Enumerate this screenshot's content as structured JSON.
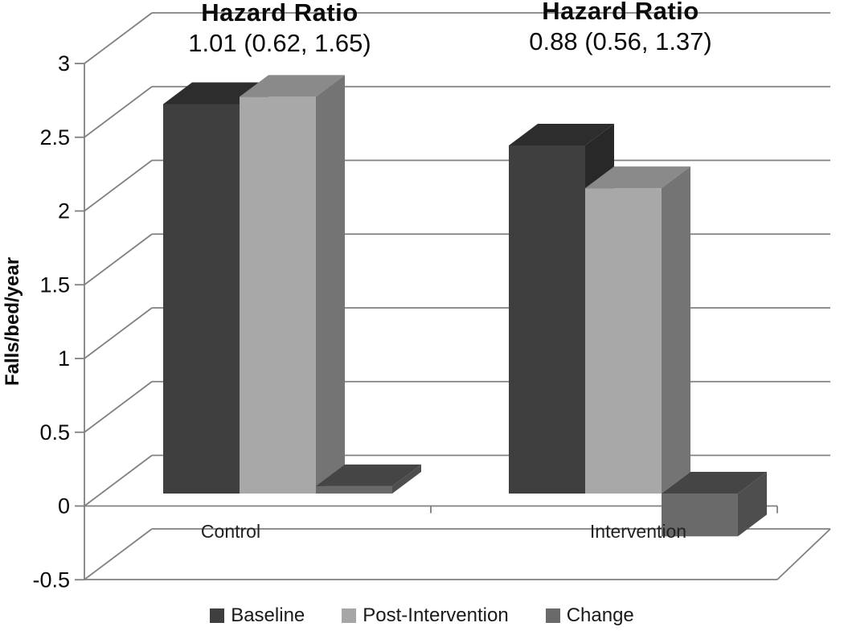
{
  "page": {
    "background": "#ffffff"
  },
  "chart_data": {
    "type": "bar",
    "projection": "3d-oblique-column",
    "title": "",
    "ylabel": "Falls/bed/year",
    "xlabel": "",
    "categories": [
      "Control",
      "Intervention"
    ],
    "series": [
      {
        "name": "Baseline",
        "values": [
          2.64,
          2.36
        ],
        "color_front": "#3f3f3f",
        "color_top": "#2d2d2d",
        "color_side": "#282828"
      },
      {
        "name": "Post-Intervention",
        "values": [
          2.69,
          2.07
        ],
        "color_front": "#a8a8a8",
        "color_top": "#8a8a8a",
        "color_side": "#747474"
      },
      {
        "name": "Change",
        "values": [
          0.05,
          -0.29
        ],
        "color_front": "#6a6a6a",
        "color_top": "#454545",
        "color_side": "#4e4e4e"
      }
    ],
    "annotations": [
      {
        "title": "Hazard Ratio",
        "value": "1.01 (0.62, 1.65)",
        "category": "Control"
      },
      {
        "title": "Hazard Ratio",
        "value": "0.88 (0.56, 1.37)",
        "category": "Intervention"
      }
    ],
    "yticks": [
      3,
      2.5,
      2,
      1.5,
      1,
      0.5,
      0,
      -0.5
    ],
    "ylim": [
      -0.5,
      3
    ],
    "grid": true,
    "legend_position": "bottom",
    "axis_color": "#808080",
    "text_color": "#0a0a0a"
  }
}
